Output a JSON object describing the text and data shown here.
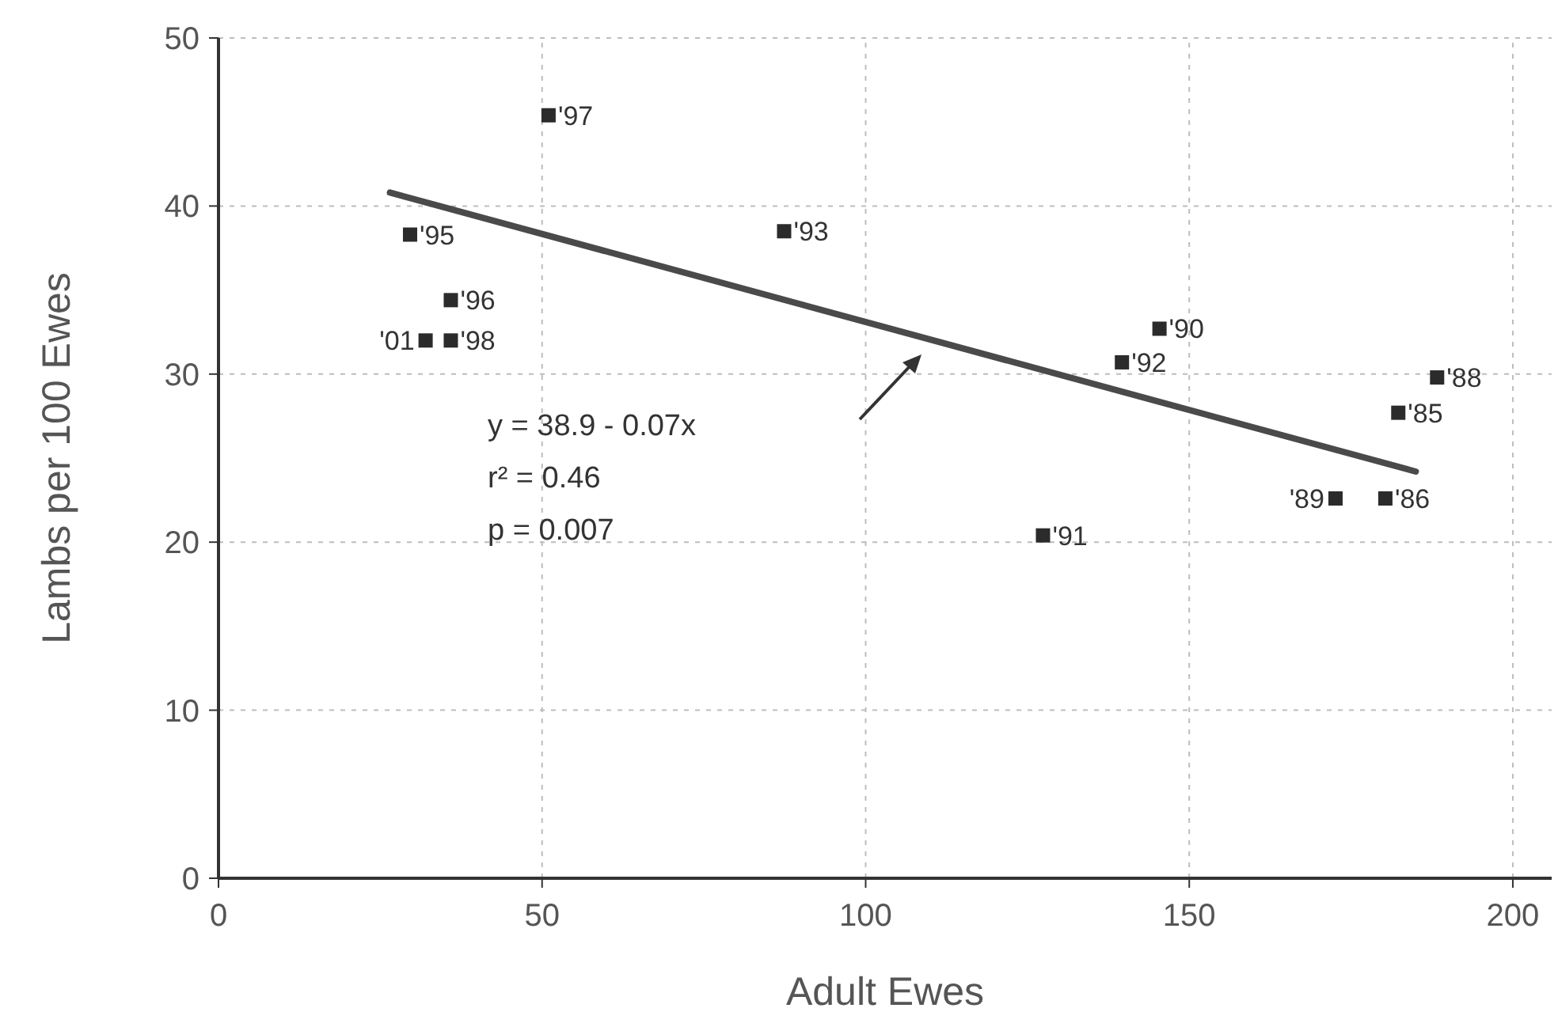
{
  "chart_data": {
    "type": "scatter",
    "xlabel": "Adult Ewes",
    "ylabel": "Lambs per 100 Ewes",
    "xlim": [
      0,
      206
    ],
    "ylim": [
      0,
      50
    ],
    "xticks": [
      0,
      50,
      100,
      150,
      200
    ],
    "yticks": [
      0,
      10,
      20,
      30,
      40,
      50
    ],
    "grid": true,
    "series": [
      {
        "marker": "square",
        "color": "#2b2b2b",
        "x": [
          51,
          29.6,
          87.4,
          35.9,
          32,
          35.9,
          145.4,
          139.6,
          188.3,
          182.3,
          172.6,
          180.3,
          127.4
        ],
        "values": [
          45.4,
          38.3,
          38.5,
          34.4,
          32,
          32,
          32.7,
          30.7,
          29.8,
          27.7,
          22.6,
          22.6,
          20.4
        ]
      },
      {
        "type": "line",
        "marker": "none",
        "color": "#4a4a4a",
        "x": [
          26.5,
          185
        ],
        "values": [
          40.8,
          24.2
        ]
      }
    ],
    "annotations": [
      {
        "text": "'97",
        "x": 51,
        "y": 45.4
      },
      {
        "text": "'95",
        "x": 29.6,
        "y": 38.3
      },
      {
        "text": "'93",
        "x": 87.4,
        "y": 38.5
      },
      {
        "text": "'96",
        "x": 35.9,
        "y": 34.4
      },
      {
        "text": "'01",
        "x": 32,
        "y": 32
      },
      {
        "text": "'98",
        "x": 35.9,
        "y": 32
      },
      {
        "text": "'90",
        "x": 145.4,
        "y": 32.7
      },
      {
        "text": "'92",
        "x": 139.6,
        "y": 30.7
      },
      {
        "text": "'88",
        "x": 188.3,
        "y": 29.8
      },
      {
        "text": "'85",
        "x": 182.3,
        "y": 27.7
      },
      {
        "text": "'89",
        "x": 172.6,
        "y": 22.6
      },
      {
        "text": "'86",
        "x": 180.3,
        "y": 22.6
      },
      {
        "text": "'91",
        "x": 127.4,
        "y": 20.4
      },
      "y = 38.9 - 0.07x",
      "r² = 0.46",
      "p = 0.007"
    ]
  }
}
